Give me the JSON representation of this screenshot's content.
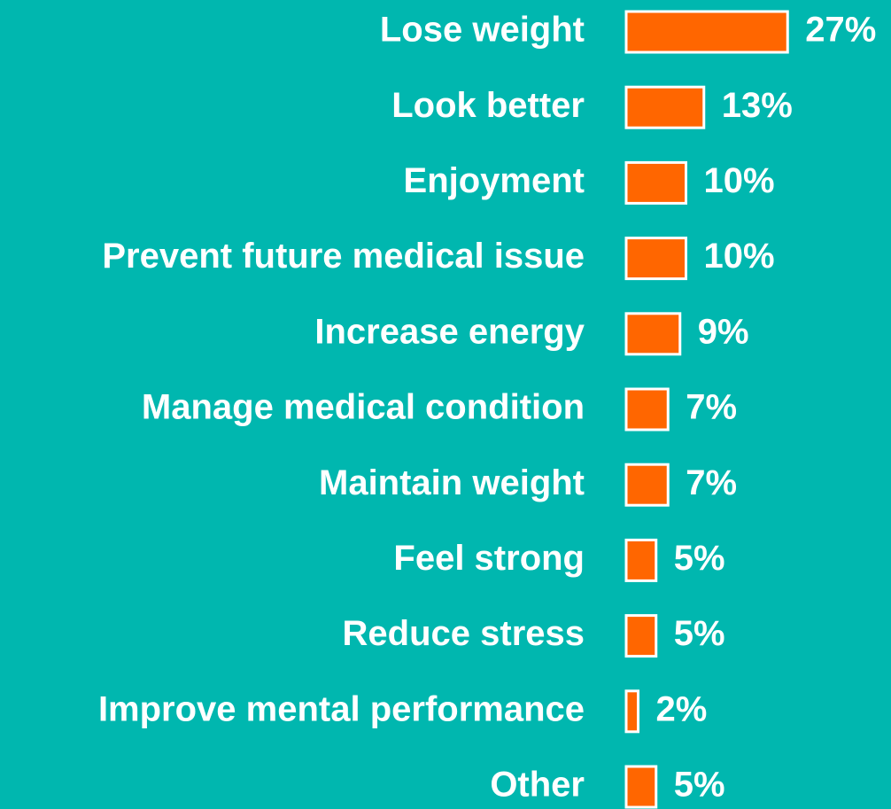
{
  "chart_data": {
    "type": "bar",
    "orientation": "horizontal",
    "categories": [
      "Lose weight",
      "Look better",
      "Enjoyment",
      "Prevent future medical issue",
      "Increase energy",
      "Manage medical condition",
      "Maintain weight",
      "Feel strong",
      "Reduce stress",
      "Improve mental performance",
      "Other"
    ],
    "values": [
      27,
      13,
      10,
      10,
      9,
      7,
      7,
      5,
      5,
      2,
      5
    ],
    "value_labels": [
      "27%",
      "13%",
      "10%",
      "10%",
      "9%",
      "7%",
      "7%",
      "5%",
      "5%",
      "2%",
      "5%"
    ],
    "color": "#ff6600"
  }
}
